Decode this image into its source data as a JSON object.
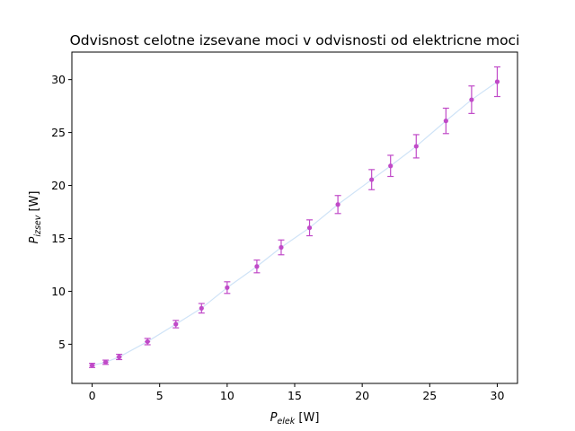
{
  "chart_data": {
    "type": "scatter",
    "title": "Odvisnost celotne izsevane moci v odvisnosti od elektricne moci",
    "xlabel_main": "P",
    "xlabel_sub": "elek",
    "xlabel_unit": " [W]",
    "ylabel_main": "P",
    "ylabel_sub": "izsev",
    "ylabel_unit": " [W]",
    "xlim": [
      -1.5,
      31.5
    ],
    "ylim": [
      1.3,
      32.6
    ],
    "x_ticks": [
      0,
      5,
      10,
      15,
      20,
      25,
      30
    ],
    "y_ticks": [
      5,
      10,
      15,
      20,
      25,
      30
    ],
    "grid": false,
    "marker_color": "#c04ac8",
    "fit_color": "#cfe3f7",
    "points": [
      {
        "x": 0.0,
        "y": 3.0,
        "yerr": 0.2,
        "xerr": 0.2
      },
      {
        "x": 1.0,
        "y": 3.3,
        "yerr": 0.2,
        "xerr": 0.2
      },
      {
        "x": 2.0,
        "y": 3.8,
        "yerr": 0.25,
        "xerr": 0.2
      },
      {
        "x": 4.1,
        "y": 5.25,
        "yerr": 0.3,
        "xerr": 0.2
      },
      {
        "x": 6.2,
        "y": 6.9,
        "yerr": 0.35,
        "xerr": 0.15
      },
      {
        "x": 8.1,
        "y": 8.4,
        "yerr": 0.45,
        "xerr": 0.1
      },
      {
        "x": 10.0,
        "y": 10.35,
        "yerr": 0.55,
        "xerr": 0.1
      },
      {
        "x": 12.2,
        "y": 12.35,
        "yerr": 0.6,
        "xerr": 0.1
      },
      {
        "x": 14.0,
        "y": 14.15,
        "yerr": 0.7,
        "xerr": 0.1
      },
      {
        "x": 16.1,
        "y": 16.0,
        "yerr": 0.75,
        "xerr": 0.1
      },
      {
        "x": 18.2,
        "y": 18.2,
        "yerr": 0.85,
        "xerr": 0.1
      },
      {
        "x": 20.7,
        "y": 20.55,
        "yerr": 0.95,
        "xerr": 0.1
      },
      {
        "x": 22.1,
        "y": 21.85,
        "yerr": 1.0,
        "xerr": 0.1
      },
      {
        "x": 24.0,
        "y": 23.7,
        "yerr": 1.1,
        "xerr": 0.1
      },
      {
        "x": 26.2,
        "y": 26.1,
        "yerr": 1.2,
        "xerr": 0.1
      },
      {
        "x": 28.1,
        "y": 28.1,
        "yerr": 1.3,
        "xerr": 0.1
      },
      {
        "x": 30.0,
        "y": 29.8,
        "yerr": 1.4,
        "xerr": 0.1
      }
    ]
  }
}
